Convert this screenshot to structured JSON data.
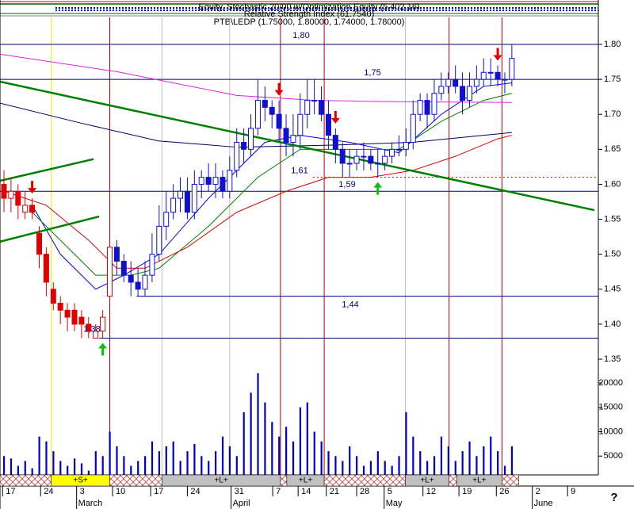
{
  "chart_data": {
    "type": "candlestick",
    "title": "PTB\\LEDP (1.75000, 1.80000, 1.74000, 1.78000)",
    "header_lines": [
      "Equity, Stochastic 20/00 w/Optimization Equity (5,402.16)",
      "Relative Strength Index (61.7540)"
    ],
    "help_label": "?",
    "xlim": [
      -0.56,
      83.7
    ],
    "xticks": [
      {
        "value": -0.2,
        "label": "17"
      },
      {
        "value": 5.2,
        "label": "24"
      },
      {
        "value": 10.3,
        "label": "3"
      },
      {
        "value": 15.4,
        "label": "10"
      },
      {
        "value": 20.8,
        "label": "17"
      },
      {
        "value": 26,
        "label": "24"
      },
      {
        "value": 32.2,
        "label": "31"
      },
      {
        "value": 38.1,
        "label": "7"
      },
      {
        "value": 41.7,
        "label": "14"
      },
      {
        "value": 45.7,
        "label": "21"
      },
      {
        "value": 50,
        "label": "28"
      },
      {
        "value": 53.9,
        "label": "5"
      },
      {
        "value": 59.4,
        "label": "12"
      },
      {
        "value": 64.5,
        "label": "19"
      },
      {
        "value": 69.8,
        "label": "26"
      },
      {
        "value": 74.9,
        "label": "2"
      },
      {
        "value": 79.9,
        "label": "9"
      }
    ],
    "month_labels": [
      {
        "value": 10.3,
        "label": "March"
      },
      {
        "value": 32.2,
        "label": "April"
      },
      {
        "value": 53.9,
        "label": "May"
      },
      {
        "value": 74.9,
        "label": "June"
      }
    ],
    "ylim": [
      1.35,
      1.8
    ],
    "yticks": [
      {
        "value": 1.35,
        "label": "1.35"
      },
      {
        "value": 1.4,
        "label": "1.40"
      },
      {
        "value": 1.45,
        "label": "1.45"
      },
      {
        "value": 1.5,
        "label": "1.50"
      },
      {
        "value": 1.55,
        "label": "1.55"
      },
      {
        "value": 1.6,
        "label": "1.60"
      },
      {
        "value": 1.65,
        "label": "1.65"
      },
      {
        "value": 1.7,
        "label": "1.70"
      },
      {
        "value": 1.75,
        "label": "1.75"
      },
      {
        "value": 1.8,
        "label": "1.80"
      }
    ],
    "open": [
      1.6,
      1.58,
      1.59,
      1.56,
      1.57,
      1.53,
      1.5,
      1.45,
      1.43,
      1.42,
      1.42,
      1.41,
      1.4,
      1.38,
      1.39,
      1.44,
      1.51,
      1.49,
      1.47,
      1.46,
      1.45,
      1.47,
      1.5,
      1.54,
      1.56,
      1.58,
      1.59,
      1.56,
      1.6,
      1.61,
      1.6,
      1.61,
      1.59,
      1.62,
      1.66,
      1.65,
      1.68,
      1.72,
      1.71,
      1.7,
      1.68,
      1.66,
      1.67,
      1.7,
      1.72,
      1.72,
      1.7,
      1.67,
      1.65,
      1.63,
      1.63,
      1.64,
      1.64,
      1.63,
      1.63,
      1.64,
      1.65,
      1.65,
      1.66,
      1.7,
      1.72,
      1.7,
      1.73,
      1.74,
      1.75,
      1.74,
      1.72,
      1.74,
      1.75,
      1.76,
      1.76,
      1.75,
      1.75
    ],
    "high": [
      1.62,
      1.61,
      1.6,
      1.59,
      1.58,
      1.54,
      1.51,
      1.46,
      1.44,
      1.43,
      1.43,
      1.42,
      1.41,
      1.4,
      1.42,
      1.52,
      1.52,
      1.5,
      1.49,
      1.48,
      1.49,
      1.53,
      1.57,
      1.59,
      1.6,
      1.61,
      1.61,
      1.62,
      1.62,
      1.63,
      1.63,
      1.62,
      1.64,
      1.68,
      1.68,
      1.7,
      1.75,
      1.74,
      1.72,
      1.72,
      1.7,
      1.7,
      1.73,
      1.75,
      1.75,
      1.74,
      1.72,
      1.68,
      1.66,
      1.65,
      1.65,
      1.66,
      1.65,
      1.65,
      1.65,
      1.66,
      1.67,
      1.68,
      1.72,
      1.73,
      1.73,
      1.75,
      1.76,
      1.76,
      1.77,
      1.76,
      1.76,
      1.77,
      1.78,
      1.78,
      1.77,
      1.76,
      1.8
    ],
    "low": [
      1.56,
      1.56,
      1.55,
      1.55,
      1.55,
      1.48,
      1.44,
      1.42,
      1.4,
      1.39,
      1.39,
      1.38,
      1.38,
      1.38,
      1.38,
      1.43,
      1.47,
      1.46,
      1.44,
      1.44,
      1.44,
      1.46,
      1.49,
      1.52,
      1.55,
      1.56,
      1.55,
      1.55,
      1.58,
      1.59,
      1.58,
      1.58,
      1.58,
      1.61,
      1.63,
      1.64,
      1.67,
      1.69,
      1.68,
      1.66,
      1.64,
      1.64,
      1.65,
      1.68,
      1.7,
      1.69,
      1.65,
      1.63,
      1.61,
      1.61,
      1.62,
      1.62,
      1.62,
      1.61,
      1.62,
      1.63,
      1.64,
      1.64,
      1.65,
      1.69,
      1.68,
      1.69,
      1.72,
      1.73,
      1.73,
      1.7,
      1.71,
      1.73,
      1.74,
      1.74,
      1.74,
      1.73,
      1.74
    ],
    "close": [
      1.58,
      1.59,
      1.57,
      1.57,
      1.56,
      1.5,
      1.46,
      1.43,
      1.42,
      1.41,
      1.4,
      1.4,
      1.39,
      1.39,
      1.41,
      1.51,
      1.49,
      1.47,
      1.46,
      1.45,
      1.47,
      1.5,
      1.54,
      1.56,
      1.58,
      1.59,
      1.56,
      1.6,
      1.61,
      1.6,
      1.61,
      1.59,
      1.62,
      1.66,
      1.65,
      1.68,
      1.72,
      1.71,
      1.7,
      1.68,
      1.66,
      1.67,
      1.7,
      1.72,
      1.72,
      1.7,
      1.67,
      1.65,
      1.63,
      1.63,
      1.64,
      1.64,
      1.63,
      1.63,
      1.64,
      1.65,
      1.65,
      1.66,
      1.7,
      1.72,
      1.7,
      1.73,
      1.74,
      1.75,
      1.74,
      1.72,
      1.74,
      1.75,
      1.76,
      1.76,
      1.75,
      1.75,
      1.78
    ],
    "trend_colors": [
      {
        "from": 0,
        "color": "#e00000"
      },
      {
        "from": 16,
        "color": "#1010d0"
      }
    ],
    "overlays": [
      {
        "color": "#0000ff",
        "x": [
          4,
          8,
          13,
          17,
          22,
          29,
          37,
          42,
          49,
          56,
          62,
          68,
          72
        ],
        "values": [
          1.57,
          1.5,
          1.45,
          1.47,
          1.5,
          1.58,
          1.66,
          1.67,
          1.66,
          1.645,
          1.7,
          1.74,
          1.745
        ]
      },
      {
        "color": "#008000",
        "x": [
          4,
          13,
          18,
          22,
          29,
          36,
          42,
          49,
          56,
          62,
          68,
          72
        ],
        "values": [
          1.56,
          1.47,
          1.47,
          1.48,
          1.54,
          1.61,
          1.65,
          1.65,
          1.65,
          1.69,
          1.72,
          1.73
        ]
      },
      {
        "color": "#e00000",
        "x": [
          0,
          6,
          12,
          16,
          20,
          26,
          33,
          40,
          46,
          52,
          58,
          64,
          70,
          72
        ],
        "values": [
          1.59,
          1.57,
          1.52,
          1.48,
          1.48,
          1.51,
          1.56,
          1.59,
          1.61,
          1.61,
          1.62,
          1.64,
          1.665,
          1.67
        ]
      },
      {
        "color": "#e020e0",
        "x": [
          -0.56,
          16,
          33,
          44,
          56,
          72
        ],
        "values": [
          1.786,
          1.761,
          1.727,
          1.72,
          1.718,
          1.717
        ]
      },
      {
        "color": "#000060",
        "x": [
          -0.56,
          10.7,
          21.9,
          33.1,
          46.6,
          57.9,
          72
        ],
        "values": [
          1.716,
          1.688,
          1.662,
          1.653,
          1.656,
          1.66,
          1.674
        ]
      }
    ],
    "trendlines": [
      {
        "color": "#008000",
        "x": [
          -0.56,
          83.7
        ],
        "values": [
          1.7467,
          1.563
        ]
      },
      {
        "color": "#008000",
        "x": [
          -0.56,
          12.7
        ],
        "values": [
          1.605,
          1.636
        ]
      },
      {
        "color": "#008000",
        "x": [
          -0.56,
          13.5
        ],
        "values": [
          1.518,
          1.554
        ]
      }
    ],
    "levels": [
      {
        "value": 1.8,
        "label": "1,80",
        "from": -0.56,
        "color": "#000080"
      },
      {
        "value": 1.75,
        "label": "1,75",
        "from": -0.56,
        "color": "#000080"
      },
      {
        "value": 1.61,
        "label": "1,61",
        "from": 43.8,
        "color": "#c00000",
        "dashed": true
      },
      {
        "value": 1.59,
        "label": "1,59",
        "from": -0.56,
        "color": "#000080"
      },
      {
        "value": 1.44,
        "label": "1,44",
        "from": 18.8,
        "color": "#000080"
      },
      {
        "value": 1.38,
        "label": "1,38",
        "from": 13.5,
        "color": "#000080"
      }
    ],
    "event_lines": [
      {
        "index": 6.7,
        "color": "#f0f000"
      },
      {
        "index": 15,
        "color": "#c00000"
      },
      {
        "index": 22.4,
        "color": "#c0c0c0"
      },
      {
        "index": 32,
        "color": "#c0c0c0"
      },
      {
        "index": 39.2,
        "color": "#c00000"
      },
      {
        "index": 45.4,
        "color": "#c00000"
      },
      {
        "index": 56.9,
        "color": "#c0c0c0"
      },
      {
        "index": 63.1,
        "color": "#c00000"
      },
      {
        "index": 70.6,
        "color": "#c00000"
      }
    ],
    "sell_signals": [
      4,
      39,
      47,
      70
    ],
    "buy_signals": [
      14,
      53
    ],
    "bands": [
      {
        "from": -0.56,
        "to": 6.7,
        "fill": "hatch"
      },
      {
        "from": 6.7,
        "to": 15,
        "fill": "#ffff00",
        "label": "+S+"
      },
      {
        "from": 15,
        "to": 22.4,
        "fill": "hatch"
      },
      {
        "from": 22.4,
        "to": 39.2,
        "fill": "#c0c0c0",
        "label": "+L+"
      },
      {
        "from": 39.2,
        "to": 40.1,
        "fill": "hatch"
      },
      {
        "from": 40.1,
        "to": 45.4,
        "fill": "#c0c0c0",
        "label": "+L+"
      },
      {
        "from": 45.4,
        "to": 56.9,
        "fill": "hatch"
      },
      {
        "from": 56.9,
        "to": 63.1,
        "fill": "#c0c0c0",
        "label": "+L+"
      },
      {
        "from": 63.1,
        "to": 64.2,
        "fill": "hatch"
      },
      {
        "from": 64.2,
        "to": 70.6,
        "fill": "#c0c0c0",
        "label": "+L+"
      },
      {
        "from": 70.6,
        "to": 73,
        "fill": "hatch"
      }
    ],
    "volume": [
      5000,
      4500,
      3000,
      4000,
      2500,
      9000,
      8000,
      6000,
      4000,
      3000,
      4500,
      3500,
      2000,
      6000,
      5000,
      10000,
      7000,
      5000,
      3000,
      4000,
      5000,
      8000,
      6000,
      7000,
      8000,
      4000,
      6000,
      7500,
      5000,
      4000,
      6000,
      9000,
      7000,
      5000,
      14000,
      18000,
      22000,
      16000,
      12000,
      9000,
      11000,
      8000,
      15000,
      16000,
      10000,
      8000,
      6000,
      5000,
      4000,
      7000,
      5000,
      3000,
      4000,
      6000,
      4000,
      3000,
      5000,
      14000,
      9000,
      6000,
      4000,
      5000,
      9000,
      7000,
      4000,
      6000,
      8000,
      5000,
      7000,
      9000,
      6000,
      3000,
      7000
    ],
    "volume_color": "#0000cc",
    "volume_ylim": [
      0,
      20000
    ],
    "volume_yticks": [
      5000,
      10000,
      15000,
      20000
    ]
  }
}
